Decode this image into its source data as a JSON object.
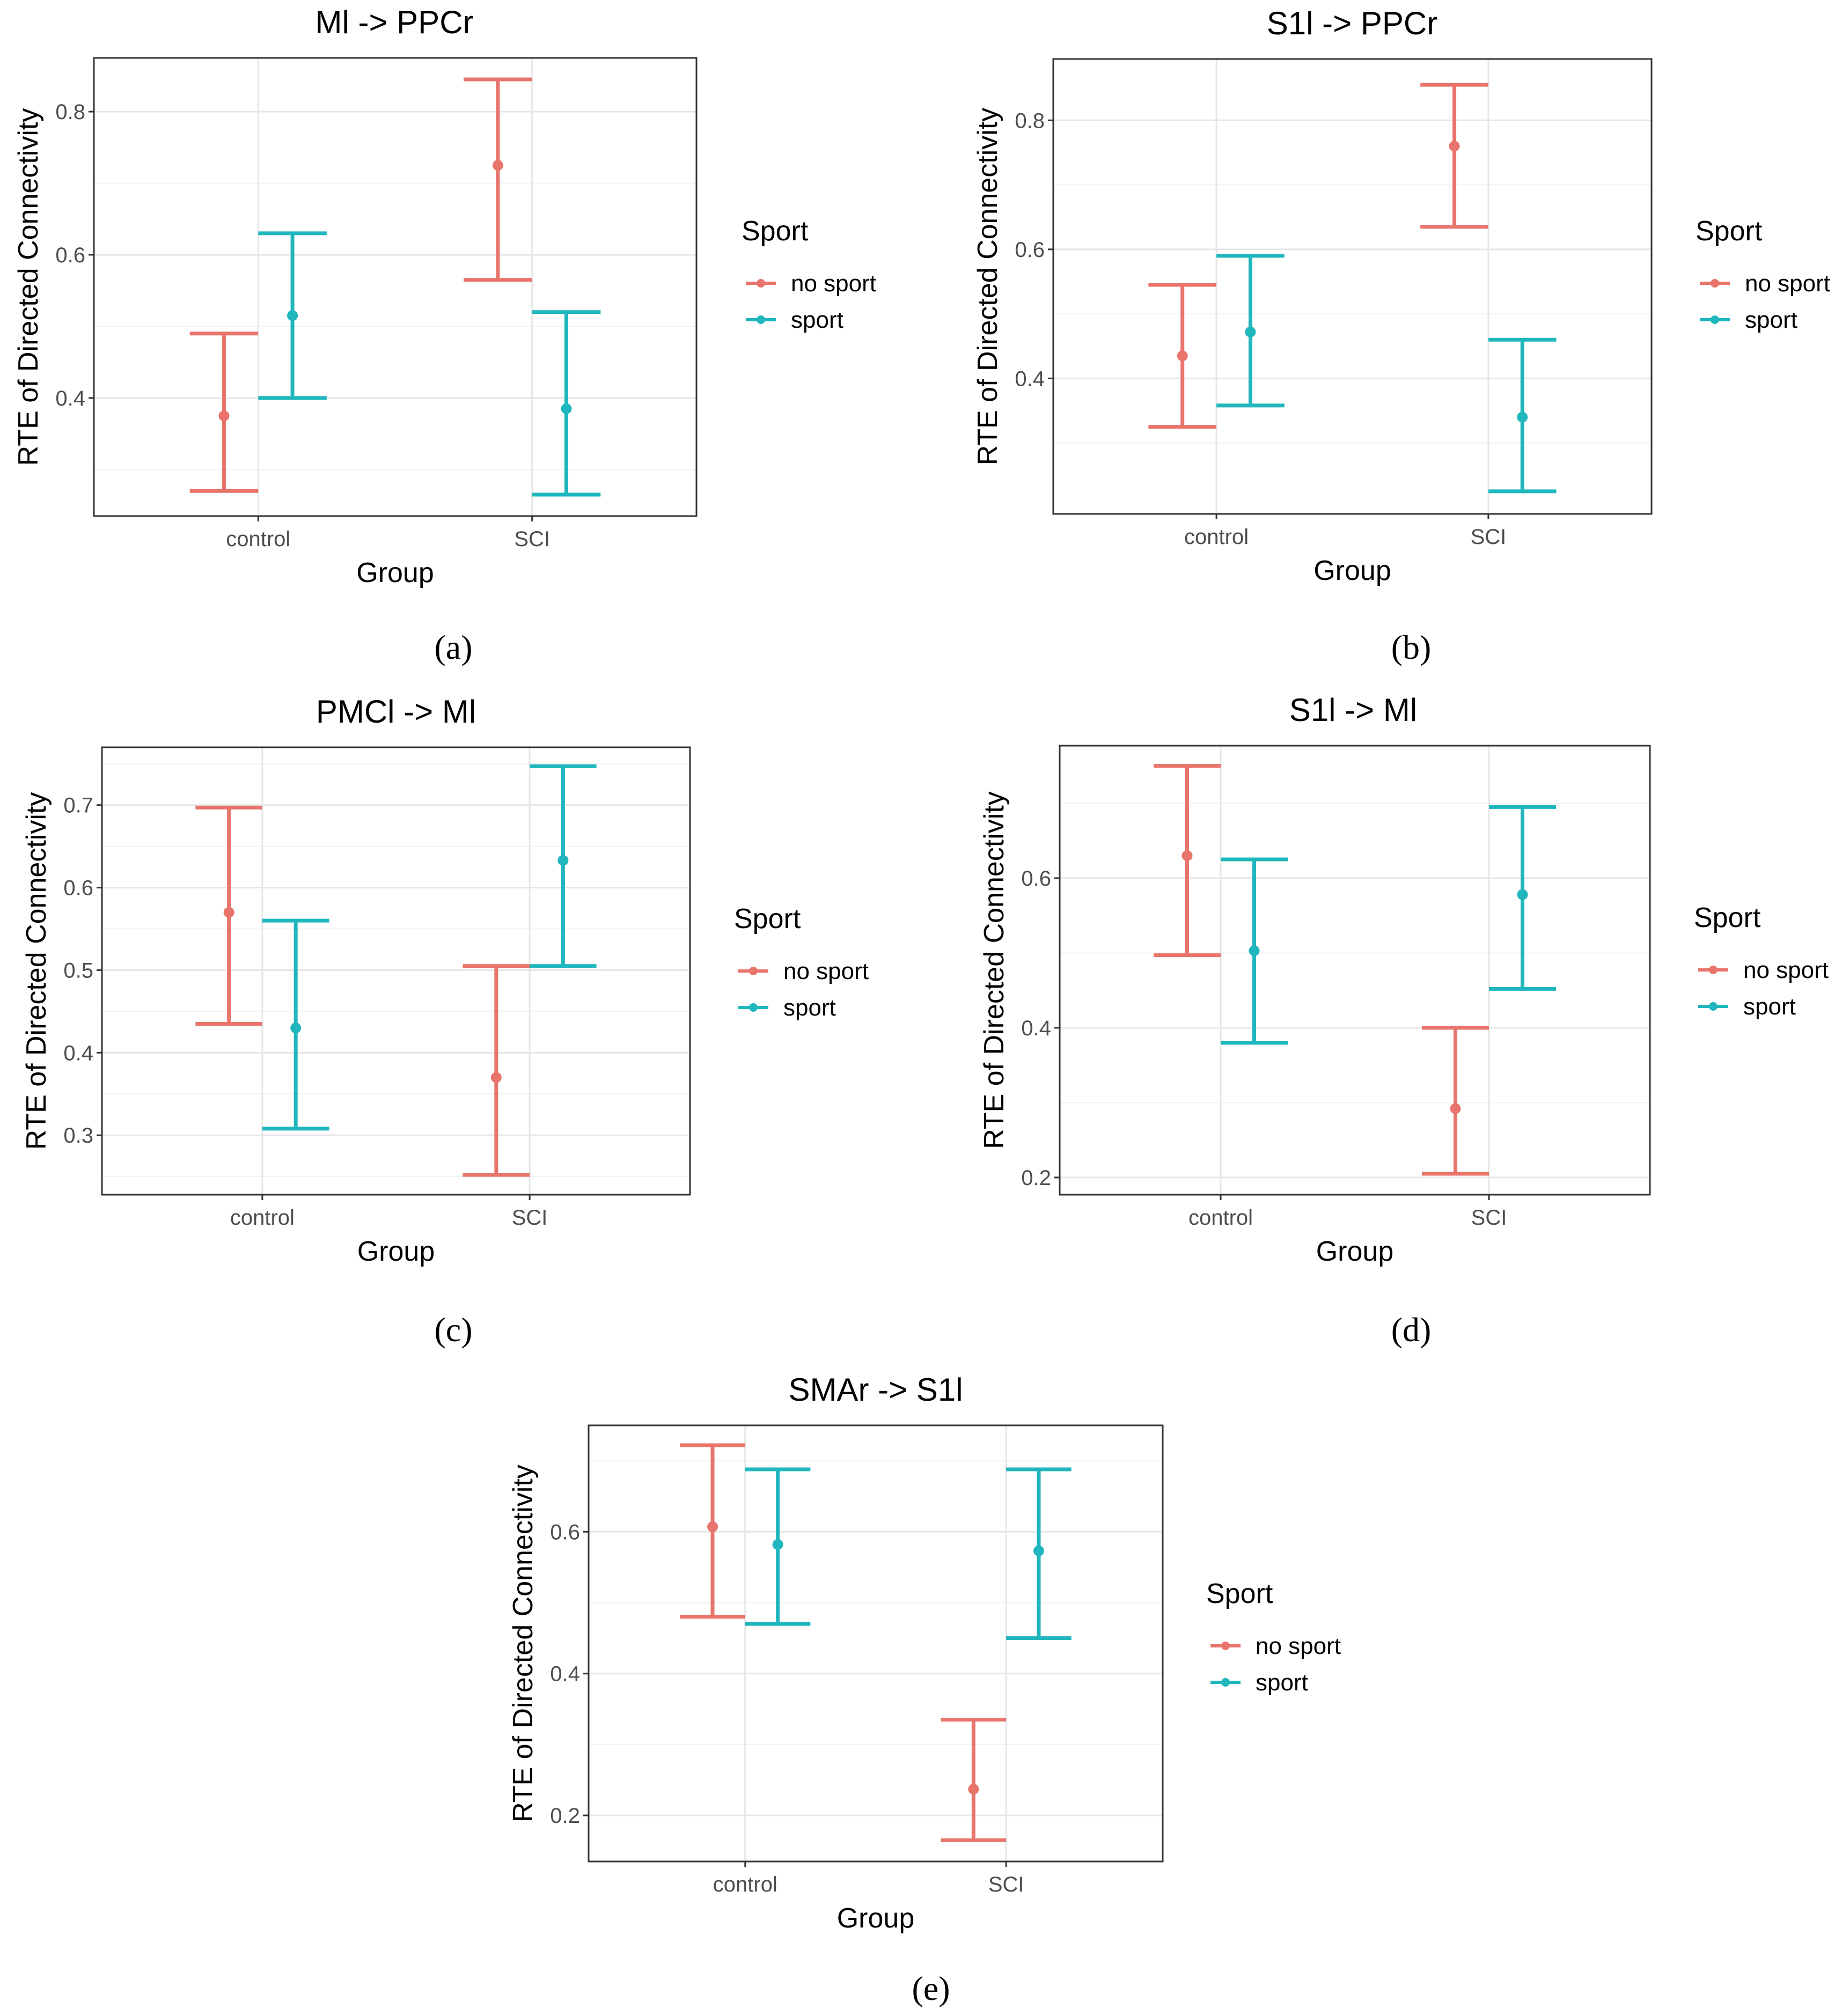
{
  "colors": {
    "no_sport": "#e8746b",
    "sport": "#1fb7bd",
    "grid_major": "#e6e6e6",
    "grid_minor": "#f2f2f2",
    "panel_border": "#333333"
  },
  "legend": {
    "title": "Sport",
    "labels": [
      "no sport",
      "sport"
    ]
  },
  "chart_data": [
    {
      "panel": "(a)",
      "type": "errorbar",
      "title": "Ml -> PPCr",
      "xlabel": "Group",
      "ylabel": "RTE of Directed Connectivity",
      "categories": [
        "control",
        "SCI"
      ],
      "ylim": [
        0.235,
        0.875
      ],
      "yticks": [
        0.4,
        0.6,
        0.8
      ],
      "yticklabels": [
        "0.4",
        "0.6",
        "0.8"
      ],
      "series": [
        {
          "name": "no sport",
          "mean": [
            0.375,
            0.725
          ],
          "lower": [
            0.27,
            0.565
          ],
          "upper": [
            0.49,
            0.845
          ]
        },
        {
          "name": "sport",
          "mean": [
            0.515,
            0.385
          ],
          "lower": [
            0.4,
            0.265
          ],
          "upper": [
            0.63,
            0.52
          ]
        }
      ]
    },
    {
      "panel": "(b)",
      "type": "errorbar",
      "title": "S1l -> PPCr",
      "xlabel": "Group",
      "ylabel": "RTE of Directed Connectivity",
      "categories": [
        "control",
        "SCI"
      ],
      "ylim": [
        0.19,
        0.895
      ],
      "yticks": [
        0.4,
        0.6,
        0.8
      ],
      "yticklabels": [
        "0.4",
        "0.6",
        "0.8"
      ],
      "series": [
        {
          "name": "no sport",
          "mean": [
            0.435,
            0.76
          ],
          "lower": [
            0.325,
            0.635
          ],
          "upper": [
            0.545,
            0.855
          ]
        },
        {
          "name": "sport",
          "mean": [
            0.472,
            0.34
          ],
          "lower": [
            0.358,
            0.225
          ],
          "upper": [
            0.59,
            0.46
          ]
        }
      ]
    },
    {
      "panel": "(c)",
      "type": "errorbar",
      "title": "PMCl -> Ml",
      "xlabel": "Group",
      "ylabel": "RTE of Directed Connectivity",
      "categories": [
        "control",
        "SCI"
      ],
      "ylim": [
        0.228,
        0.77
      ],
      "yticks": [
        0.3,
        0.4,
        0.5,
        0.6,
        0.7
      ],
      "yticklabels": [
        "0.3",
        "0.4",
        "0.5",
        "0.6",
        "0.7"
      ],
      "series": [
        {
          "name": "no sport",
          "mean": [
            0.57,
            0.37
          ],
          "lower": [
            0.435,
            0.252
          ],
          "upper": [
            0.697,
            0.505
          ]
        },
        {
          "name": "sport",
          "mean": [
            0.43,
            0.633
          ],
          "lower": [
            0.308,
            0.505
          ],
          "upper": [
            0.56,
            0.747
          ]
        }
      ]
    },
    {
      "panel": "(d)",
      "type": "errorbar",
      "title": "S1l -> Ml",
      "xlabel": "Group",
      "ylabel": "RTE of Directed Connectivity",
      "categories": [
        "control",
        "SCI"
      ],
      "ylim": [
        0.177,
        0.777
      ],
      "yticks": [
        0.2,
        0.4,
        0.6
      ],
      "yticklabels": [
        "0.2",
        "0.4",
        "0.6"
      ],
      "series": [
        {
          "name": "no sport",
          "mean": [
            0.63,
            0.292
          ],
          "lower": [
            0.497,
            0.205
          ],
          "upper": [
            0.75,
            0.4
          ]
        },
        {
          "name": "sport",
          "mean": [
            0.503,
            0.578
          ],
          "lower": [
            0.38,
            0.452
          ],
          "upper": [
            0.625,
            0.695
          ]
        }
      ]
    },
    {
      "panel": "(e)",
      "type": "errorbar",
      "title": "SMAr -> S1l",
      "xlabel": "Group",
      "ylabel": "RTE of Directed Connectivity",
      "categories": [
        "control",
        "SCI"
      ],
      "ylim": [
        0.135,
        0.75
      ],
      "yticks": [
        0.2,
        0.4,
        0.6
      ],
      "yticklabels": [
        "0.2",
        "0.4",
        "0.6"
      ],
      "series": [
        {
          "name": "no sport",
          "mean": [
            0.607,
            0.237
          ],
          "lower": [
            0.48,
            0.165
          ],
          "upper": [
            0.722,
            0.335
          ]
        },
        {
          "name": "sport",
          "mean": [
            0.582,
            0.573
          ],
          "lower": [
            0.47,
            0.45
          ],
          "upper": [
            0.688,
            0.688
          ]
        }
      ]
    }
  ]
}
